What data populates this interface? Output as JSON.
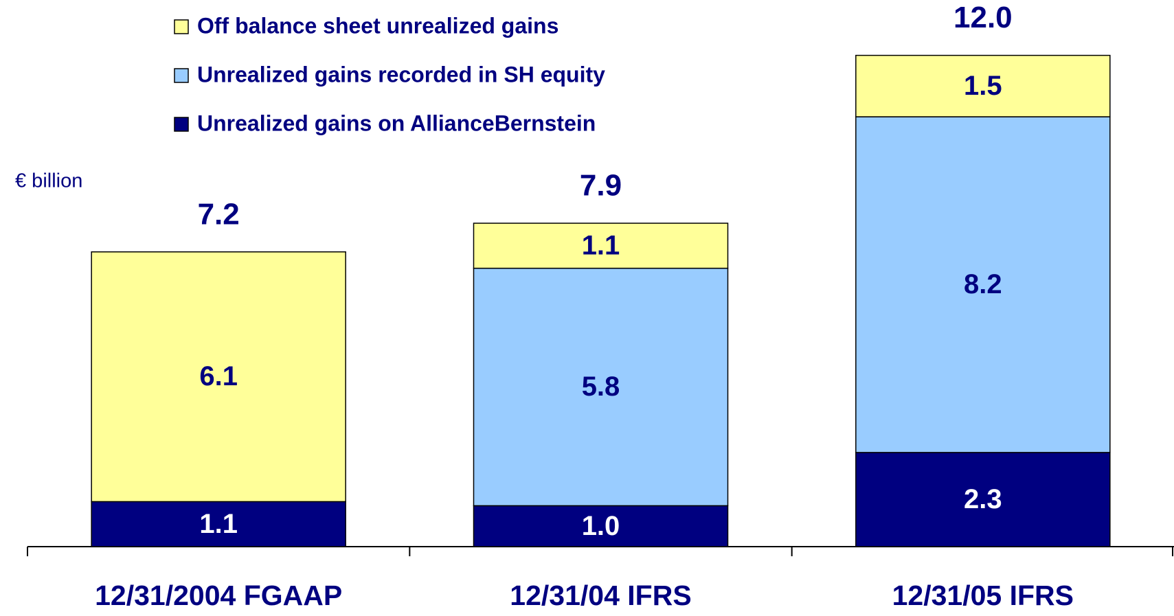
{
  "chart_data": {
    "type": "stacked_bar",
    "unit_label": "€ billion",
    "categories": [
      "12/31/2004 FGAAP",
      "12/31/04 IFRS",
      "12/31/05 IFRS"
    ],
    "series": [
      {
        "name": "Unrealized gains on AllianceBernstein",
        "color": "#000080",
        "label_color": "#ffffff",
        "values": [
          1.1,
          1.0,
          2.3
        ],
        "value_labels": [
          "1.1",
          "1.0",
          "2.3"
        ]
      },
      {
        "name": "Unrealized gains recorded in SH equity",
        "color": "#99ccff",
        "label_color": "#000080",
        "values": [
          null,
          5.8,
          8.2
        ]
      },
      {
        "name": "Off balance sheet unrealized gains",
        "color": "#ffff99",
        "label_color": "#000080",
        "values": [
          6.1,
          1.1,
          1.5
        ]
      }
    ],
    "totals": {
      "values": [
        7.2,
        7.9,
        12
      ],
      "value_labels": [
        "7.2",
        "7.9",
        "12.0"
      ]
    },
    "ylim": [
      0,
      13
    ],
    "legend": "top-left"
  }
}
